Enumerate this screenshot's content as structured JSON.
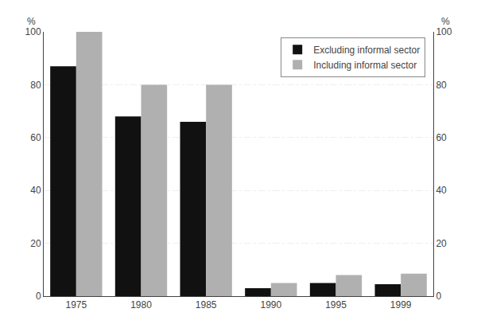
{
  "chart_data": {
    "type": "bar",
    "categories": [
      "1975",
      "1980",
      "1985",
      "1990",
      "1995",
      "1999"
    ],
    "series": [
      {
        "name": "Excluding informal sector",
        "color": "#111111",
        "values": [
          87,
          68,
          66,
          3,
          5,
          4.5
        ]
      },
      {
        "name": "Including informal sector",
        "color": "#b0b0b0",
        "values": [
          100,
          80,
          80,
          5,
          8,
          8.5
        ]
      }
    ],
    "ylabel": "%",
    "y2label": "%",
    "ylim": [
      0,
      100
    ],
    "yticks": [
      0,
      20,
      40,
      60,
      80,
      100
    ],
    "y2lim": [
      0,
      100
    ],
    "y2ticks": [
      0,
      20,
      40,
      60,
      80,
      100
    ],
    "grid": true,
    "legend": "upper right"
  }
}
